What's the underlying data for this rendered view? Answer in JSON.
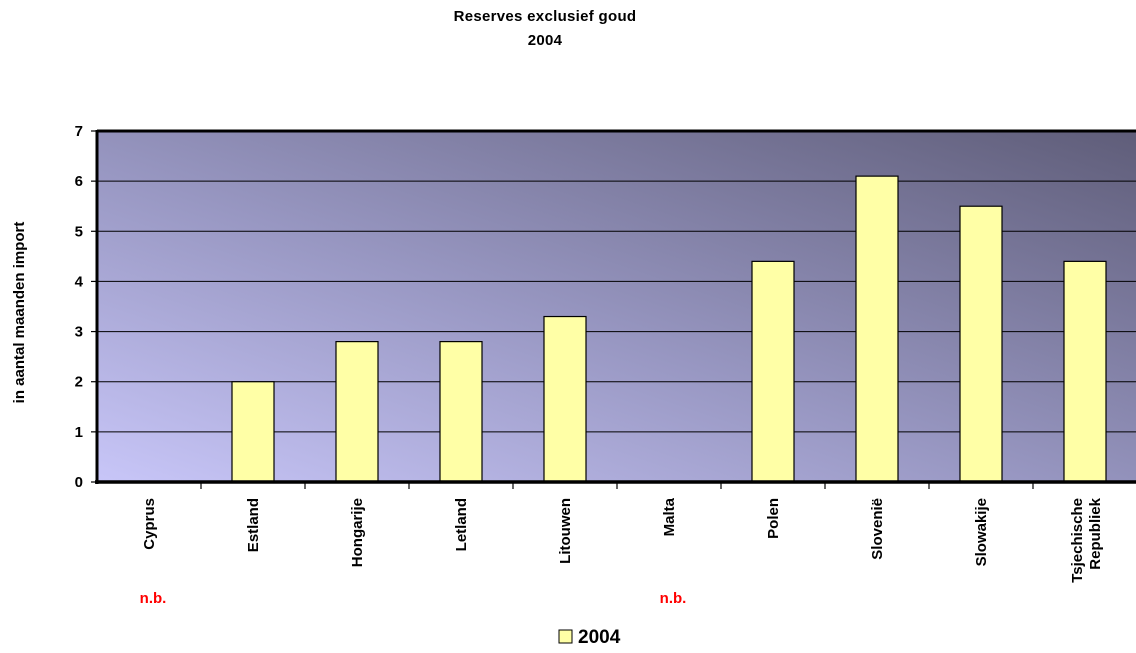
{
  "chart_data": {
    "type": "bar",
    "title": "Reserves exclusief goud",
    "subtitle": "2004",
    "ylabel": "in aantal maanden import",
    "xlabel": "",
    "ylim": [
      0,
      7
    ],
    "yticks": [
      0,
      1,
      2,
      3,
      4,
      5,
      6,
      7
    ],
    "grid": true,
    "legend_position": "bottom",
    "categories": [
      "Cyprus",
      "Estland",
      "Hongarije",
      "Letland",
      "Litouwen",
      "Malta",
      "Polen",
      "Slovenië",
      "Slowakije",
      "Tsjechische Republiek"
    ],
    "series": [
      {
        "name": "2004",
        "values": [
          null,
          2.0,
          2.8,
          2.8,
          3.3,
          null,
          4.4,
          6.1,
          5.5,
          4.4
        ]
      }
    ],
    "annotations": [
      {
        "category": "Cyprus",
        "text": "n.b."
      },
      {
        "category": "Malta",
        "text": "n.b."
      }
    ],
    "colors": {
      "bar_fill": "#ffffa6",
      "bar_stroke": "#000000",
      "annotation": "#ff0000",
      "plot_bg_light": "#c8c6f8",
      "plot_bg_dark": "#5f5d79"
    }
  }
}
